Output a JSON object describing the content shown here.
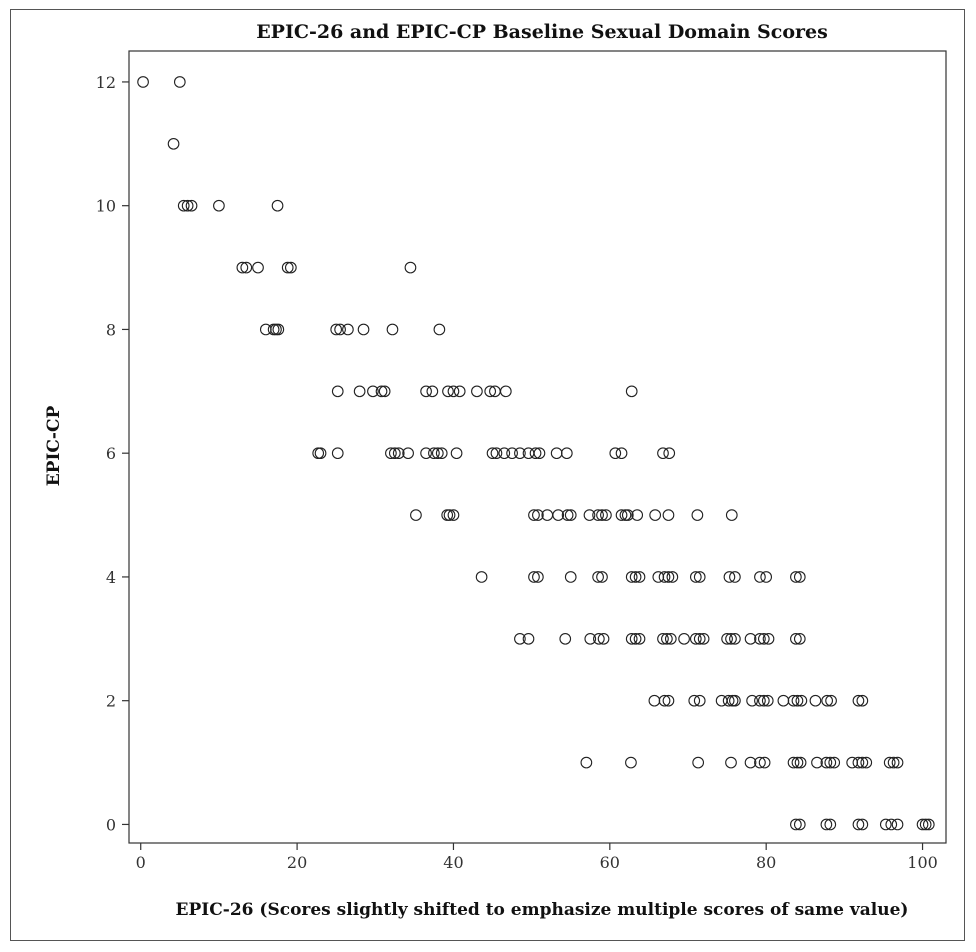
{
  "chart_data": {
    "type": "scatter",
    "title": "EPIC-26 and EPIC-CP Baseline Sexual Domain Scores",
    "xlabel": "EPIC-26 (Scores slightly shifted to emphasize multiple scores of same value)",
    "ylabel": "EPIC-CP",
    "xlim": [
      -1.5,
      103
    ],
    "ylim": [
      -0.3,
      12.5
    ],
    "x_ticks": [
      0,
      20,
      40,
      60,
      80,
      100
    ],
    "y_ticks": [
      0,
      2,
      4,
      6,
      8,
      10,
      12
    ],
    "grid": false,
    "legend": "none",
    "marker": "open-circle",
    "points": [
      [
        0.3,
        12
      ],
      [
        5,
        12
      ],
      [
        4.2,
        11
      ],
      [
        5.5,
        10
      ],
      [
        6,
        10
      ],
      [
        6.5,
        10
      ],
      [
        10,
        10
      ],
      [
        17.5,
        10
      ],
      [
        13,
        9
      ],
      [
        13.5,
        9
      ],
      [
        15,
        9
      ],
      [
        18.8,
        9
      ],
      [
        19.2,
        9
      ],
      [
        34.5,
        9
      ],
      [
        16,
        8
      ],
      [
        17,
        8
      ],
      [
        17.3,
        8
      ],
      [
        17.6,
        8
      ],
      [
        25,
        8
      ],
      [
        25.5,
        8
      ],
      [
        26.5,
        8
      ],
      [
        28.5,
        8
      ],
      [
        32.2,
        8
      ],
      [
        38.2,
        8
      ],
      [
        25.2,
        7
      ],
      [
        28,
        7
      ],
      [
        29.7,
        7
      ],
      [
        30.8,
        7
      ],
      [
        31.2,
        7
      ],
      [
        36.5,
        7
      ],
      [
        37.3,
        7
      ],
      [
        39.3,
        7
      ],
      [
        40,
        7
      ],
      [
        40.8,
        7
      ],
      [
        43,
        7
      ],
      [
        44.7,
        7
      ],
      [
        45.3,
        7
      ],
      [
        46.7,
        7
      ],
      [
        62.8,
        7
      ],
      [
        22.7,
        6
      ],
      [
        23,
        6
      ],
      [
        25.2,
        6
      ],
      [
        32,
        6
      ],
      [
        32.5,
        6
      ],
      [
        33,
        6
      ],
      [
        34.2,
        6
      ],
      [
        36.5,
        6
      ],
      [
        37.5,
        6
      ],
      [
        38,
        6
      ],
      [
        38.5,
        6
      ],
      [
        40.4,
        6
      ],
      [
        45,
        6
      ],
      [
        45.5,
        6
      ],
      [
        46.5,
        6
      ],
      [
        47.5,
        6
      ],
      [
        48.5,
        6
      ],
      [
        49.6,
        6
      ],
      [
        50.5,
        6
      ],
      [
        51,
        6
      ],
      [
        53.2,
        6
      ],
      [
        54.5,
        6
      ],
      [
        60.7,
        6
      ],
      [
        61.5,
        6
      ],
      [
        66.8,
        6
      ],
      [
        67.6,
        6
      ],
      [
        35.2,
        5
      ],
      [
        39.2,
        5
      ],
      [
        39.5,
        5
      ],
      [
        40,
        5
      ],
      [
        50.3,
        5
      ],
      [
        50.8,
        5
      ],
      [
        52,
        5
      ],
      [
        53.4,
        5
      ],
      [
        54.6,
        5
      ],
      [
        55,
        5
      ],
      [
        57.4,
        5
      ],
      [
        58.5,
        5
      ],
      [
        59,
        5
      ],
      [
        59.5,
        5
      ],
      [
        61.5,
        5
      ],
      [
        62,
        5
      ],
      [
        62.3,
        5
      ],
      [
        63.5,
        5
      ],
      [
        65.8,
        5
      ],
      [
        67.5,
        5
      ],
      [
        71.2,
        5
      ],
      [
        75.6,
        5
      ],
      [
        43.6,
        4
      ],
      [
        50.3,
        4
      ],
      [
        50.8,
        4
      ],
      [
        55,
        4
      ],
      [
        58.5,
        4
      ],
      [
        59,
        4
      ],
      [
        62.8,
        4
      ],
      [
        63.3,
        4
      ],
      [
        63.8,
        4
      ],
      [
        66.2,
        4
      ],
      [
        67,
        4
      ],
      [
        67.5,
        4
      ],
      [
        68,
        4
      ],
      [
        71,
        4
      ],
      [
        71.5,
        4
      ],
      [
        75.3,
        4
      ],
      [
        76,
        4
      ],
      [
        79.2,
        4
      ],
      [
        80,
        4
      ],
      [
        83.8,
        4
      ],
      [
        84.3,
        4
      ],
      [
        48.5,
        3
      ],
      [
        49.6,
        3
      ],
      [
        54.3,
        3
      ],
      [
        57.5,
        3
      ],
      [
        58.6,
        3
      ],
      [
        59.2,
        3
      ],
      [
        62.8,
        3
      ],
      [
        63.3,
        3
      ],
      [
        63.8,
        3
      ],
      [
        66.8,
        3
      ],
      [
        67.3,
        3
      ],
      [
        67.8,
        3
      ],
      [
        69.5,
        3
      ],
      [
        71,
        3
      ],
      [
        71.5,
        3
      ],
      [
        72,
        3
      ],
      [
        75,
        3
      ],
      [
        75.5,
        3
      ],
      [
        76,
        3
      ],
      [
        78,
        3
      ],
      [
        79.2,
        3
      ],
      [
        79.7,
        3
      ],
      [
        80.3,
        3
      ],
      [
        83.8,
        3
      ],
      [
        84.3,
        3
      ],
      [
        65.7,
        2
      ],
      [
        67,
        2
      ],
      [
        67.5,
        2
      ],
      [
        70.8,
        2
      ],
      [
        71.5,
        2
      ],
      [
        74.3,
        2
      ],
      [
        75.2,
        2
      ],
      [
        75.7,
        2
      ],
      [
        76,
        2
      ],
      [
        78.2,
        2
      ],
      [
        79.2,
        2
      ],
      [
        79.7,
        2
      ],
      [
        80.2,
        2
      ],
      [
        82.2,
        2
      ],
      [
        83.5,
        2
      ],
      [
        84,
        2
      ],
      [
        84.5,
        2
      ],
      [
        86.3,
        2
      ],
      [
        87.8,
        2
      ],
      [
        88.3,
        2
      ],
      [
        91.8,
        2
      ],
      [
        92.3,
        2
      ],
      [
        57,
        1
      ],
      [
        62.7,
        1
      ],
      [
        71.3,
        1
      ],
      [
        75.5,
        1
      ],
      [
        78,
        1
      ],
      [
        79.2,
        1
      ],
      [
        79.8,
        1
      ],
      [
        83.5,
        1
      ],
      [
        84,
        1
      ],
      [
        84.4,
        1
      ],
      [
        86.5,
        1
      ],
      [
        87.7,
        1
      ],
      [
        88.2,
        1
      ],
      [
        88.7,
        1
      ],
      [
        91,
        1
      ],
      [
        91.8,
        1
      ],
      [
        92.3,
        1
      ],
      [
        92.8,
        1
      ],
      [
        95.8,
        1
      ],
      [
        96.3,
        1
      ],
      [
        96.8,
        1
      ],
      [
        83.8,
        0
      ],
      [
        84.3,
        0
      ],
      [
        87.7,
        0
      ],
      [
        88.2,
        0
      ],
      [
        91.8,
        0
      ],
      [
        92.3,
        0
      ],
      [
        95.3,
        0
      ],
      [
        96,
        0
      ],
      [
        96.8,
        0
      ],
      [
        100,
        0
      ],
      [
        100.4,
        0
      ],
      [
        100.8,
        0
      ]
    ]
  }
}
